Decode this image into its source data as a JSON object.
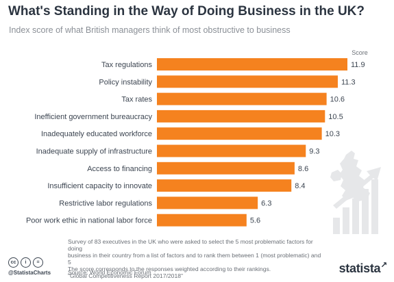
{
  "header": {
    "title": "What's Standing in the Way of Doing Business in the UK?",
    "subtitle": "Index score of what British managers think of most obstructive to business"
  },
  "chart_data": {
    "type": "bar",
    "orientation": "horizontal",
    "value_header": "Score",
    "categories": [
      "Tax regulations",
      "Policy instability",
      "Tax rates",
      "Inefficient government bureaucracy",
      "Inadequately educated workforce",
      "Inadequate supply of infrastructure",
      "Access to financing",
      "Insufficient capacity to innovate",
      "Restrictive labor regulations",
      "Poor work ethic in national labor force"
    ],
    "values": [
      11.9,
      11.3,
      10.6,
      10.5,
      10.3,
      9.3,
      8.6,
      8.4,
      6.3,
      5.6
    ],
    "value_labels": [
      "11.9",
      "11.3",
      "10.6",
      "10.5",
      "10.3",
      "9.3",
      "8.6",
      "8.4",
      "6.3",
      "5.6"
    ],
    "xlim": [
      0,
      11.9
    ],
    "bar_color": "#f5821f",
    "grid": false
  },
  "footer": {
    "note_lines": [
      "Survey of 83 executives in the UK who were asked to select the 5 most problematic factors for doing",
      "business in their country from a list of factors and to rank them between 1 (most problematic) and 5",
      "The score corresponds to the responses weighted according to their rankings.",
      "\"Global Competitiveness Report 2017/2018\""
    ],
    "source": "Source: World Economic Forum",
    "handle": "@StatistaCharts",
    "license_icons": [
      "cc",
      "i",
      "="
    ],
    "brand": "statista"
  },
  "colors": {
    "title": "#2b3440",
    "subtitle": "#8a8f96",
    "bar": "#f5821f",
    "decor": "#e6e7e9"
  }
}
